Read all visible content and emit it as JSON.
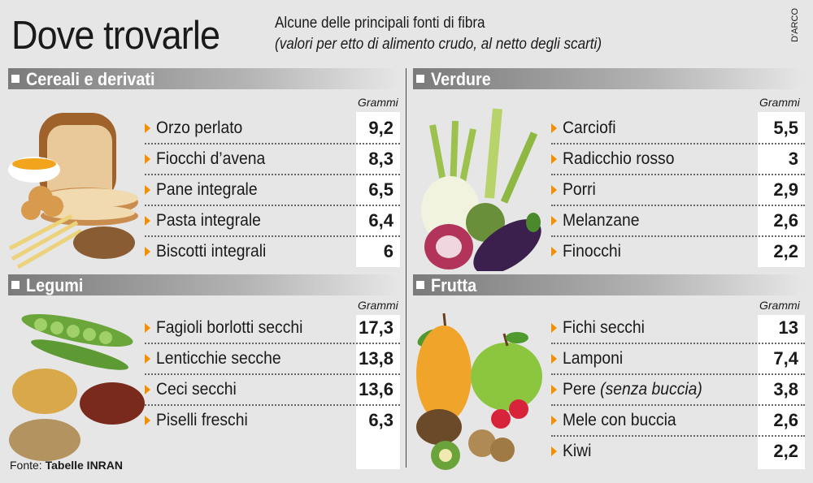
{
  "header": {
    "title": "Dove trovarle",
    "subtitle": "Alcune delle principali fonti di fibra",
    "subtitle_note": "(valori per etto di alimento crudo,  al netto degli scarti)",
    "credit": "D'ARCO"
  },
  "units_label": "Grammi",
  "panels": {
    "cereali": {
      "heading": "Cereali e derivati",
      "items": [
        {
          "name": "Orzo perlato",
          "value": "9,2"
        },
        {
          "name": "Fiocchi d’avena",
          "value": "8,3"
        },
        {
          "name": "Pane integrale",
          "value": "6,5"
        },
        {
          "name": "Pasta integrale",
          "value": "6,4"
        },
        {
          "name": "Biscotti integrali",
          "value": "6"
        }
      ]
    },
    "verdure": {
      "heading": "Verdure",
      "items": [
        {
          "name": "Carciofi",
          "value": "5,5"
        },
        {
          "name": "Radicchio rosso",
          "value": "3"
        },
        {
          "name": "Porri",
          "value": "2,9"
        },
        {
          "name": "Melanzane",
          "value": "2,6"
        },
        {
          "name": "Finocchi",
          "value": "2,2"
        }
      ]
    },
    "legumi": {
      "heading": "Legumi",
      "items": [
        {
          "name": "Fagioli borlotti secchi",
          "value": "17,3"
        },
        {
          "name": "Lenticchie secche",
          "value": "13,8"
        },
        {
          "name": "Ceci secchi",
          "value": "13,6"
        },
        {
          "name": "Piselli freschi",
          "value": "6,3"
        }
      ]
    },
    "frutta": {
      "heading": "Frutta",
      "items": [
        {
          "name": "Fichi secchi",
          "value": "13"
        },
        {
          "name": "Lamponi",
          "value": "7,4"
        },
        {
          "name": "Pere",
          "name_note": "(senza buccia)",
          "value": "3,8"
        },
        {
          "name": "Mele con buccia",
          "value": "2,6"
        },
        {
          "name": "Kiwi",
          "value": "2,2"
        }
      ]
    }
  },
  "source": {
    "label": "Fonte:",
    "value": "Tabelle INRAN"
  },
  "colors": {
    "arrow": "#f29100",
    "background": "#e6e6e6",
    "bar": "#8c8c8c"
  }
}
